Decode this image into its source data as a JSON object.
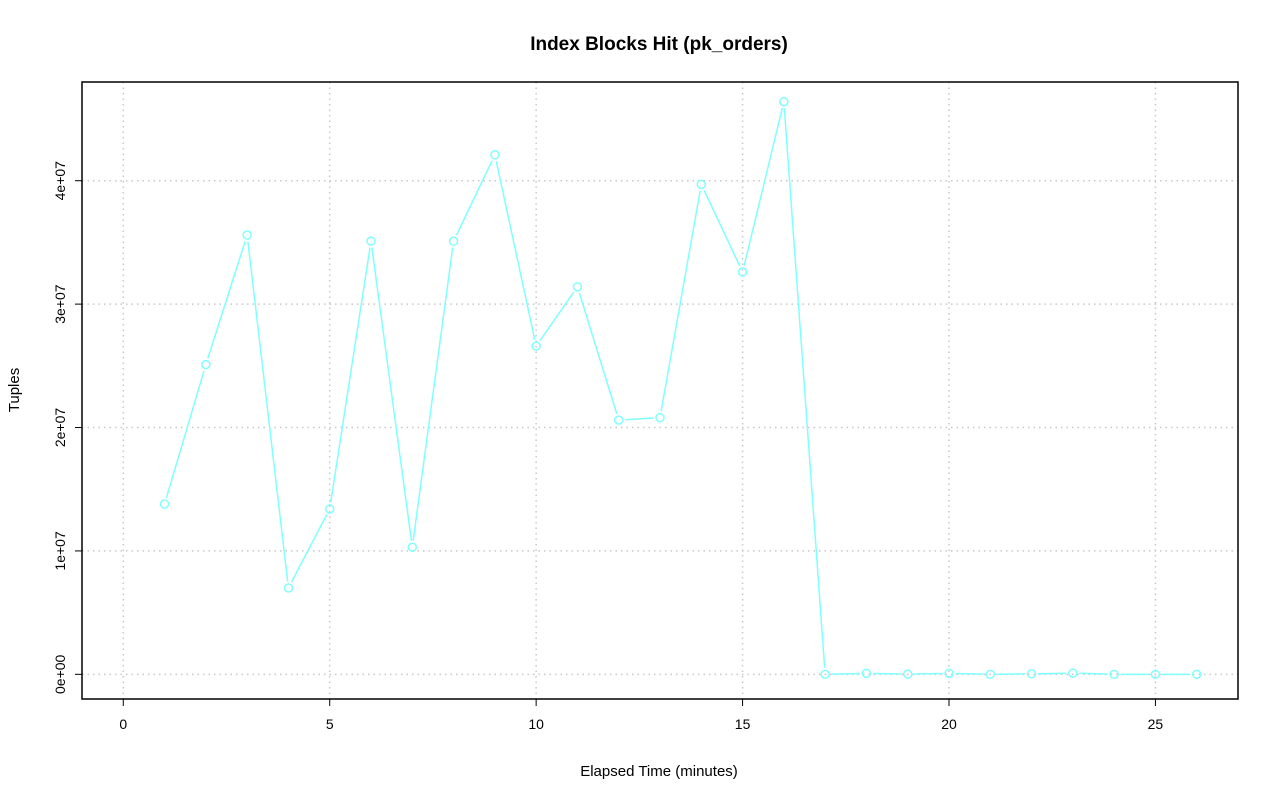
{
  "chart_data": {
    "type": "line",
    "title": "Index Blocks Hit (pk_orders)",
    "xlabel": "Elapsed Time (minutes)",
    "ylabel": "Tuples",
    "xlim": [
      -1,
      27
    ],
    "ylim": [
      -2000000,
      48000000
    ],
    "x_ticks": [
      0,
      5,
      10,
      15,
      20,
      25
    ],
    "x_tick_labels": [
      "0",
      "5",
      "10",
      "15",
      "20",
      "25"
    ],
    "y_ticks": [
      0,
      10000000,
      20000000,
      30000000,
      40000000
    ],
    "y_tick_labels": [
      "0e+00",
      "1e+07",
      "2e+07",
      "3e+07",
      "4e+07"
    ],
    "grid": true,
    "series": [
      {
        "color": "#7fffff",
        "marker": "circle",
        "x": [
          1,
          2,
          3,
          4,
          5,
          6,
          7,
          8,
          9,
          10,
          11,
          12,
          13,
          14,
          15,
          16,
          17,
          18,
          19,
          20,
          21,
          22,
          23,
          24,
          25,
          26
        ],
        "values": [
          13800000,
          25100000,
          35600000,
          7000000,
          13400000,
          35100000,
          10300000,
          35100000,
          42100000,
          26600000,
          31400000,
          20600000,
          20800000,
          39700000,
          32600000,
          46400000,
          0,
          80000,
          20000,
          80000,
          0,
          40000,
          100000,
          0,
          0,
          0
        ]
      }
    ]
  }
}
